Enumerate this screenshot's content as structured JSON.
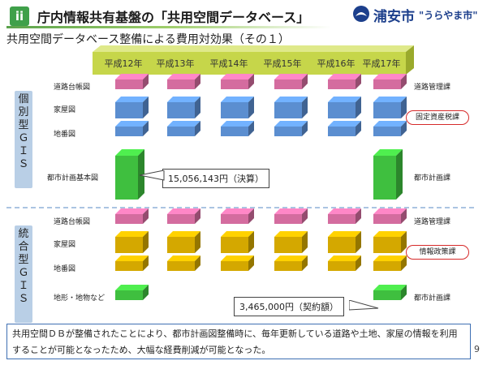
{
  "header": {
    "title": "庁内情報共有基盤の「共用空間データベース」",
    "logo_text": "浦安市",
    "logo_sub": "\"うらやま市\"",
    "title_mark": "ii"
  },
  "subtitle": "共用空間データベース整備による費用対効果（その１）",
  "years": [
    "平成12年",
    "平成13年",
    "平成14年",
    "平成15年",
    "平成16年",
    "平成17年"
  ],
  "sections": [
    {
      "side_label": [
        "個",
        "別",
        "型",
        "Ｇ",
        "Ｉ",
        "Ｓ"
      ],
      "rows": [
        {
          "label": "道路台帳図",
          "color": "#d46c9f",
          "right": "道路管理課",
          "kind": "flat",
          "years": [
            1,
            1,
            1,
            1,
            1,
            1
          ]
        },
        {
          "label": "家屋図",
          "color": "#5b8ed0",
          "right": "固定資産税課",
          "kind": "tall",
          "years": [
            1,
            1,
            1,
            1,
            1,
            1
          ]
        },
        {
          "label": "地番図",
          "color": "#5b8ed0",
          "right": "",
          "kind": "flat",
          "years": [
            1,
            1,
            1,
            1,
            1,
            1
          ]
        },
        {
          "label": "都市計画基本図",
          "color": "#3fbf3f",
          "right": "都市計画課",
          "kind": "big",
          "years": [
            1,
            0,
            0,
            0,
            0,
            1
          ]
        }
      ],
      "callout": "15,056,143円（決算）"
    },
    {
      "side_label": [
        "統",
        "合",
        "型",
        "Ｇ",
        "Ｉ",
        "Ｓ"
      ],
      "rows": [
        {
          "label": "道路台帳図",
          "color": "#d46c9f",
          "right": "道路管理課",
          "kind": "flat",
          "years": [
            1,
            1,
            1,
            1,
            1,
            1
          ]
        },
        {
          "label": "家屋図",
          "color": "#d4a800",
          "right": "情報政策課",
          "kind": "tall",
          "years": [
            1,
            1,
            1,
            1,
            1,
            1
          ]
        },
        {
          "label": "地番図",
          "color": "#d4a800",
          "right": "",
          "kind": "flat",
          "years": [
            1,
            1,
            1,
            1,
            1,
            1
          ]
        },
        {
          "label": "地形・地物など",
          "color": "#3fbf3f",
          "right": "都市計画課",
          "kind": "flat",
          "years": [
            1,
            0,
            0,
            0,
            0,
            1
          ]
        }
      ],
      "callout": "3,465,000円（契約額）"
    }
  ],
  "bottom_text": "共用空間ＤＢが整備されたことにより、都市計画図整備時に、毎年更新している道路や土地、家屋の情報を利用することが可能となったため、大幅な経費削減が可能となった。",
  "page_number": "9",
  "colors": {
    "year_bar": "#c6d64a",
    "side_label_fill": "#b9cfe6",
    "bottom_border": "#3e6fb3",
    "oval_border": "#d62a2a"
  }
}
